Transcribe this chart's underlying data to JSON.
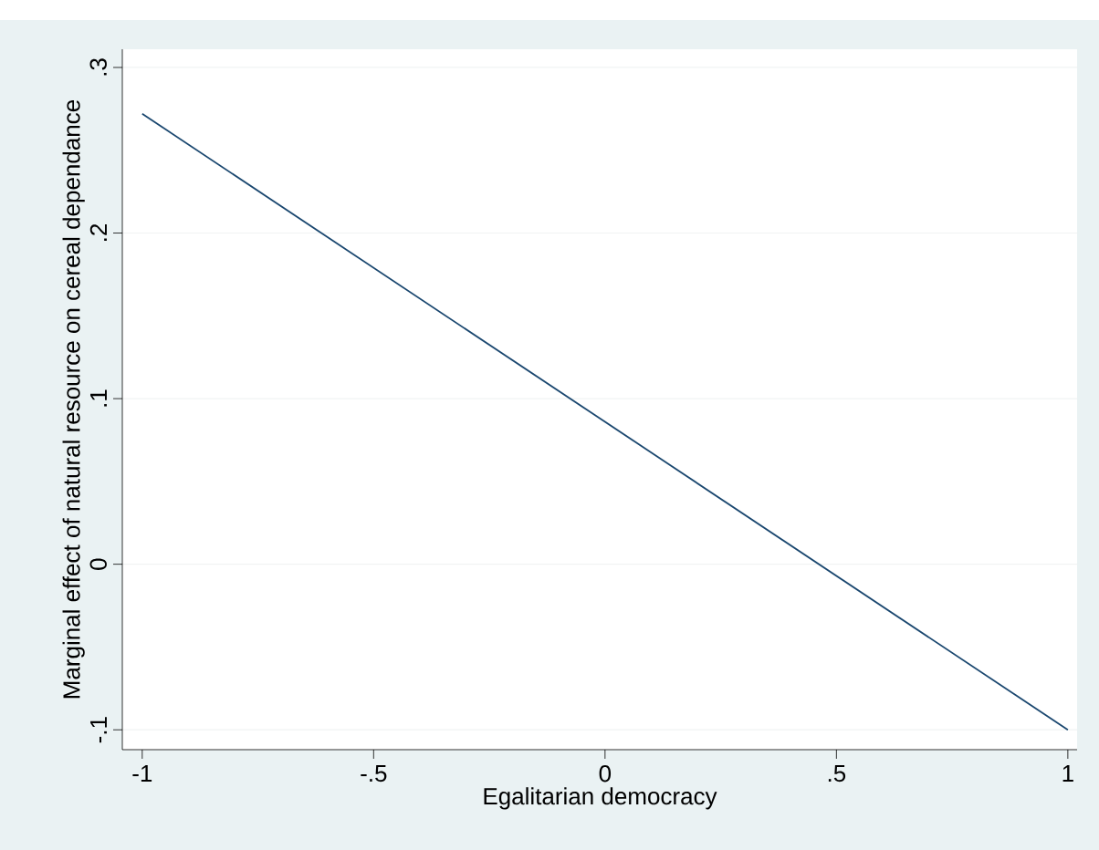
{
  "chart_data": {
    "type": "line",
    "xlabel": "Egalitarian democracy",
    "ylabel": "Marginal effect of natural resource on cereal dependance",
    "x": [
      -1,
      1
    ],
    "series": [
      {
        "color": "#1a476f",
        "values": [
          0.272,
          -0.1
        ]
      }
    ],
    "xlim": [
      -1.043,
      1.02
    ],
    "ylim": [
      -0.112,
      0.311
    ],
    "xticks": [
      {
        "value": -1,
        "label": "-1"
      },
      {
        "value": -0.5,
        "label": "-.5"
      },
      0,
      {
        "value": 0.5,
        "label": ".5"
      },
      1
    ],
    "yticks": [
      {
        "value": -0.1,
        "label": "-.1"
      },
      0,
      {
        "value": 0.1,
        "label": ".1"
      },
      {
        "value": 0.2,
        "label": ".2"
      },
      {
        "value": 0.3,
        "label": ".3"
      }
    ],
    "grid": "y",
    "marker": "none",
    "line_style": "solid"
  }
}
